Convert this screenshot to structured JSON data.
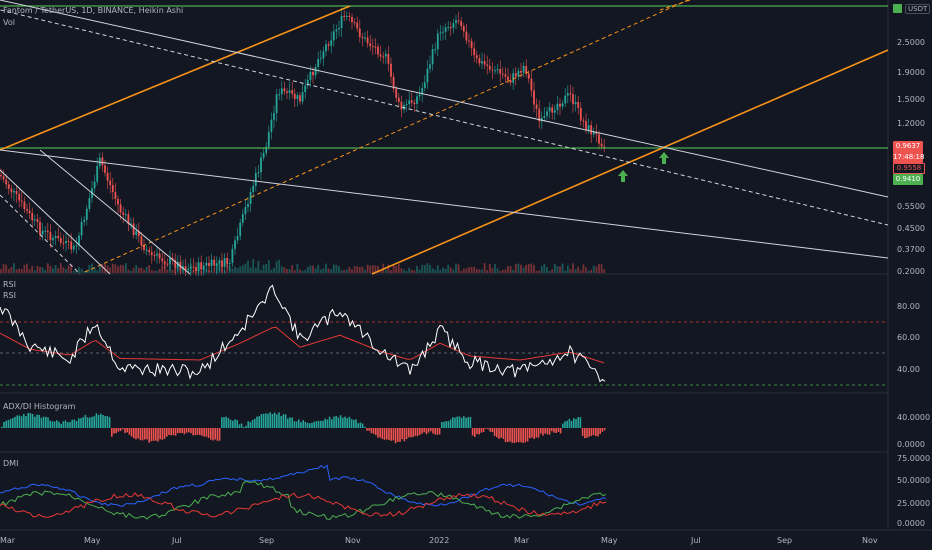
{
  "header": {
    "symbol_title": "Fantom / TetherUS, 1D, BINANCE, Heikin Ashi",
    "vol_label": "Vol"
  },
  "currency_badge": "USDT",
  "price_axis": {
    "ticks": [
      "2.5000",
      "1.9000",
      "1.5000",
      "1.2000",
      "0.5500",
      "0.4500",
      "0.3700",
      "0.2000"
    ]
  },
  "price_tags": {
    "last": "0.9637",
    "countdown": "17:48:18",
    "level_1": "0.9558",
    "level_2": "0.9410"
  },
  "rsi_panel": {
    "title": "RSI",
    "subtitle": "RSI",
    "ticks": [
      "80.00",
      "60.00",
      "40.00"
    ]
  },
  "adx_panel": {
    "title": "ADX/DI Histogram",
    "ticks": [
      "40.0000",
      "0.0000"
    ]
  },
  "dmi_panel": {
    "title": "DMI",
    "ticks": [
      "75.0000",
      "50.0000",
      "25.0000",
      "0.0000"
    ]
  },
  "time_axis": {
    "labels": [
      "Mar",
      "May",
      "Jul",
      "Sep",
      "Nov",
      "2022",
      "Mar",
      "May",
      "Jul",
      "Sep",
      "Nov"
    ]
  },
  "colors": {
    "background": "#131722",
    "up_candle": "#26a69a",
    "down_candle": "#ef5350",
    "orange_channel": "#f7931a",
    "green_level": "#4caf50",
    "rsi_line": "#ffffff",
    "rsi_ma": "#e53935",
    "di_plus": "#4caf50",
    "di_minus": "#e53935",
    "adx": "#2962ff"
  },
  "icons": {
    "arrow_up": "arrow-up-icon"
  }
}
